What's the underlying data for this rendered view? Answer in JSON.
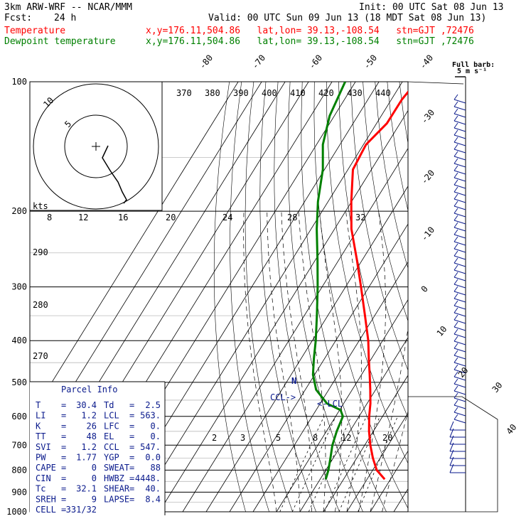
{
  "header": {
    "model": "3km ARW-WRF -- NCAR/MMM",
    "init": "Init: 00 UTC Sat 08 Jun 13",
    "fcst_label": "Fcst:",
    "fcst_value": "24 h",
    "valid": "Valid: 00 UTC Sun 09 Jun 13 (18 MDT Sat 08 Jun 13)",
    "temp_label": "Temperature",
    "temp_info": "x,y=176.11,504.86   lat,lon= 39.13,-108.54   stn=GJT ,72476",
    "dew_label": "Dewpoint temperature",
    "dew_info": "x,y=176.11,504.86   lat,lon= 39.13,-108.54   stn=GJT ,72476"
  },
  "colors": {
    "temperature": "#ff0000",
    "dewpoint": "#008000",
    "parcel": "#0a1a8c",
    "grid": "#000000"
  },
  "chart_data": {
    "type": "line",
    "subtype": "skew-T log-p sounding",
    "pressure_ticks": [
      "100",
      "200",
      "300",
      "400",
      "500",
      "600",
      "700",
      "800",
      "900",
      "1000"
    ],
    "isotherm_labels": [
      "-80",
      "-70",
      "-60",
      "-50",
      "-40",
      "-30",
      "-20",
      "-10",
      "0",
      "10",
      "20",
      "30",
      "40"
    ],
    "theta_labels": [
      "370",
      "380",
      "390",
      "400",
      "410",
      "420",
      "430",
      "440"
    ],
    "thetae_labels": [
      "290",
      "280",
      "270"
    ],
    "hodograph_ticks": [
      "8",
      "12",
      "16",
      "20",
      "24",
      "28",
      "32"
    ],
    "hodograph_units": "kts",
    "hodograph_rings": [
      "5",
      "10"
    ],
    "mixing_ratio_labels": [
      "2",
      "3",
      "5",
      "8",
      "12",
      "20"
    ],
    "wind_legend": [
      "Full barb:",
      "5 m s⁻¹"
    ],
    "markers": {
      "ccl": "CCL->",
      "lcl": "<-LCL",
      "tropo": "N"
    },
    "series": [
      {
        "name": "Temperature",
        "points": [
          [
            840,
            27.5
          ],
          [
            800,
            21.7
          ],
          [
            750,
            16.9
          ],
          [
            700,
            12.4
          ],
          [
            650,
            8.2
          ],
          [
            600,
            4.3
          ],
          [
            560,
            1.4
          ],
          [
            520,
            -2.3
          ],
          [
            480,
            -6.5
          ],
          [
            440,
            -11.2
          ],
          [
            400,
            -16.1
          ],
          [
            350,
            -24.1
          ],
          [
            300,
            -33.4
          ],
          [
            260,
            -42.2
          ],
          [
            220,
            -52.8
          ],
          [
            190,
            -60.1
          ],
          [
            160,
            -67.9
          ],
          [
            140,
            -68.9
          ],
          [
            125,
            -65.6
          ],
          [
            110,
            -65.5
          ],
          [
            100,
            -64.0
          ]
        ]
      },
      {
        "name": "Dewpoint temperature",
        "points": [
          [
            840,
            2.4
          ],
          [
            800,
            1.1
          ],
          [
            750,
            -1.2
          ],
          [
            700,
            -3.8
          ],
          [
            650,
            -5.6
          ],
          [
            600,
            -6.9
          ],
          [
            580,
            -9.6
          ],
          [
            560,
            -17.1
          ],
          [
            520,
            -25.4
          ],
          [
            480,
            -30.7
          ],
          [
            440,
            -34.6
          ],
          [
            400,
            -38.5
          ],
          [
            350,
            -44.6
          ],
          [
            300,
            -51.9
          ],
          [
            260,
            -59.0
          ],
          [
            220,
            -67.6
          ],
          [
            190,
            -74.3
          ],
          [
            160,
            -80.7
          ],
          [
            140,
            -87.3
          ],
          [
            120,
            -92.0
          ],
          [
            100,
            -94.4
          ]
        ]
      }
    ]
  },
  "parcel_info": {
    "title": "Parcel Info",
    "rows": [
      [
        {
          "k": "T  ",
          "v": "30.4"
        },
        {
          "k": "Td ",
          "v": "2.5"
        }
      ],
      [
        {
          "k": "LI ",
          "v": "1.2"
        },
        {
          "k": "LCL",
          "v": "563."
        }
      ],
      [
        {
          "k": "K  ",
          "v": "26"
        },
        {
          "k": "LFC",
          "v": "0."
        }
      ],
      [
        {
          "k": "TT ",
          "v": "48"
        },
        {
          "k": "EL ",
          "v": "0."
        }
      ],
      [
        {
          "k": "SVI",
          "v": "1.2"
        },
        {
          "k": "CCL",
          "v": "547."
        }
      ],
      [
        {
          "k": "PW ",
          "v": "1.77"
        },
        {
          "k": "YGP",
          "v": "0.0"
        }
      ],
      [
        {
          "k": "CAPE",
          "v": "0"
        },
        {
          "k": "SWEAT",
          "v": "88"
        }
      ],
      [
        {
          "k": "CIN ",
          "v": "0"
        },
        {
          "k": "HWBZ",
          "v": "4448."
        }
      ],
      [
        {
          "k": "Tc ",
          "v": "32.1"
        },
        {
          "k": "SHEAR",
          "v": "40."
        }
      ],
      [
        {
          "k": "SREH",
          "v": "9"
        },
        {
          "k": "LAPSE",
          "v": "8.4"
        }
      ],
      [
        {
          "k": "CELL",
          "v": "331/32"
        }
      ]
    ]
  }
}
